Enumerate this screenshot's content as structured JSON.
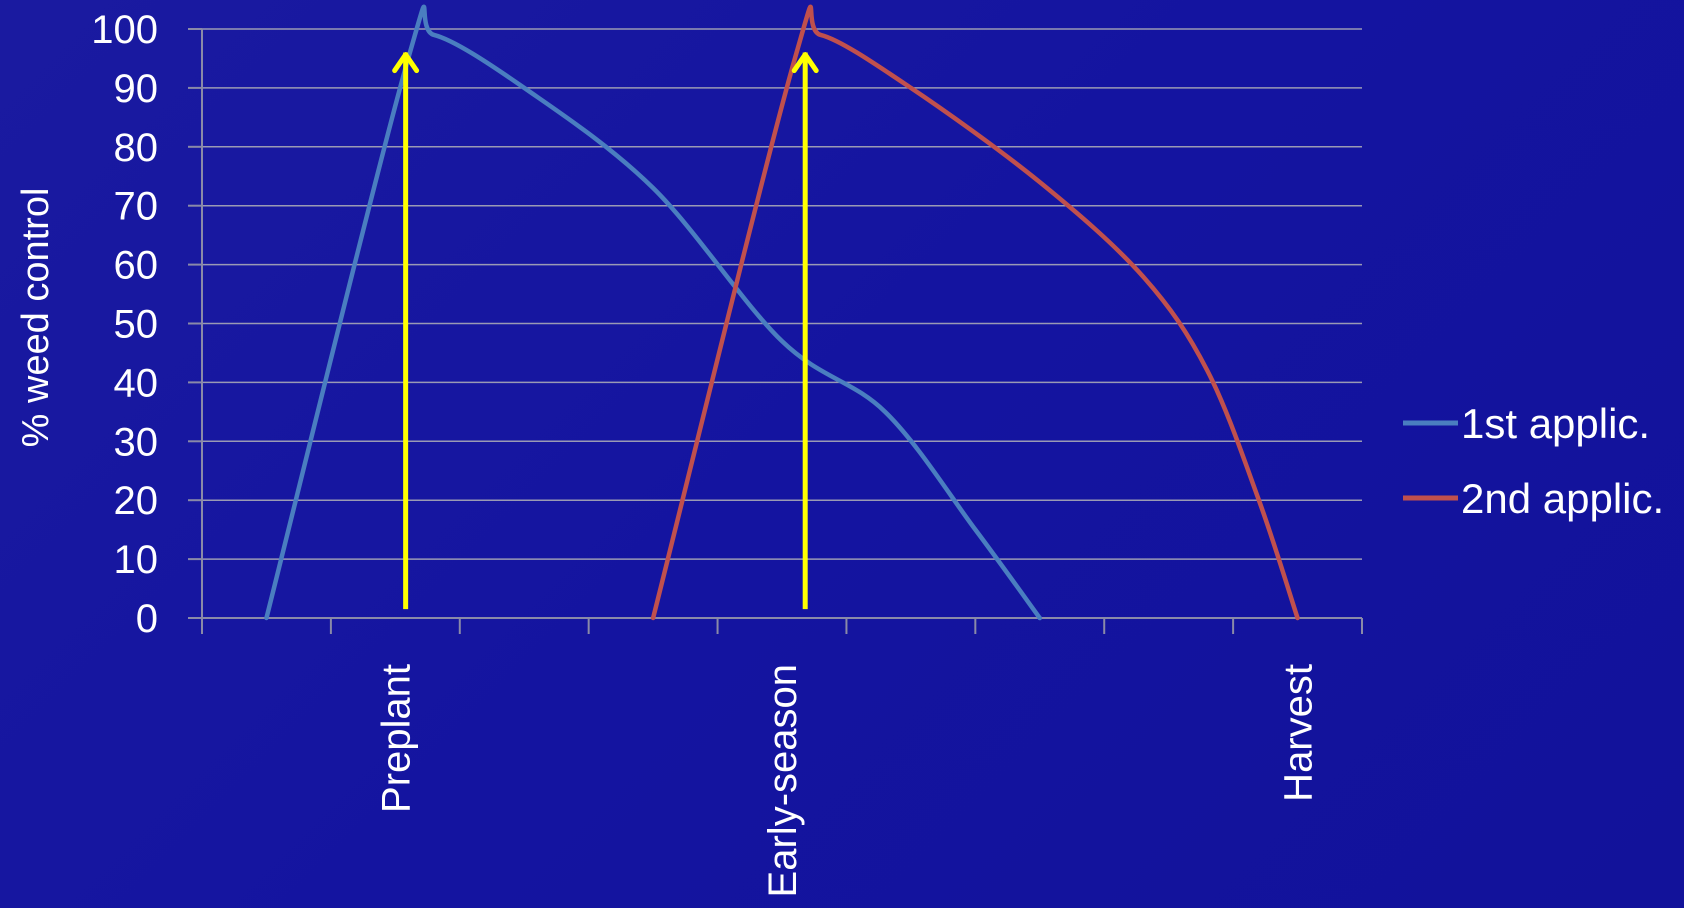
{
  "chart_data": {
    "type": "line",
    "ylabel": "% weed control",
    "xlabel": "",
    "ylim": [
      0,
      100
    ],
    "yticks": [
      0,
      10,
      20,
      30,
      40,
      50,
      60,
      70,
      80,
      90,
      100
    ],
    "x_count": 9,
    "categories": [
      {
        "x": 1.5,
        "label": "Preplant"
      },
      {
        "x": 4.5,
        "label": "Early-season"
      },
      {
        "x": 8.5,
        "label": "Harvest"
      }
    ],
    "grid": true,
    "legend_position": "right",
    "series": [
      {
        "name": "1st applic.",
        "color": "#4a7ec0",
        "points": [
          [
            0.5,
            0
          ],
          [
            1.6,
            95
          ],
          [
            1.8,
            99
          ],
          [
            2.5,
            90
          ],
          [
            3.5,
            73
          ],
          [
            4.5,
            47
          ],
          [
            5.3,
            35
          ],
          [
            6.0,
            15
          ],
          [
            6.5,
            0
          ]
        ]
      },
      {
        "name": "2nd applic.",
        "color": "#c0504d",
        "points": [
          [
            3.5,
            0
          ],
          [
            4.6,
            95
          ],
          [
            4.8,
            99
          ],
          [
            5.5,
            90
          ],
          [
            6.5,
            74
          ],
          [
            7.3,
            58
          ],
          [
            7.8,
            42
          ],
          [
            8.2,
            20
          ],
          [
            8.5,
            0
          ]
        ]
      }
    ],
    "annotations": [
      {
        "type": "arrow",
        "x": 1.58,
        "from_y": 1.5,
        "to_y": 96,
        "color": "#ffff00"
      },
      {
        "type": "arrow",
        "x": 4.68,
        "from_y": 1.5,
        "to_y": 96,
        "color": "#ffff00"
      }
    ]
  }
}
